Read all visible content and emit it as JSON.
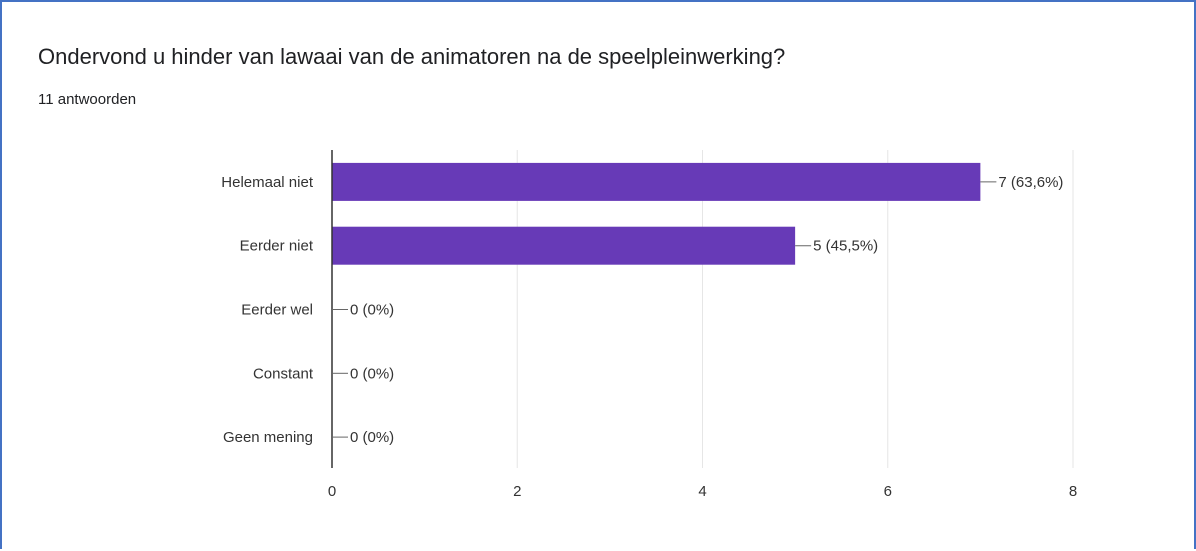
{
  "chart_data": {
    "type": "bar",
    "orientation": "horizontal",
    "title": "Ondervond u hinder van lawaai van de animatoren na de speelpleinwerking?",
    "subtitle": "11 antwoorden",
    "categories": [
      "Helemaal niet",
      "Eerder niet",
      "Eerder wel",
      "Constant",
      "Geen mening"
    ],
    "values": [
      7,
      5,
      0,
      0,
      0
    ],
    "data_labels": [
      "7 (63,6%)",
      "5 (45,5%)",
      "0 (0%)",
      "0 (0%)",
      "0 (0%)"
    ],
    "x_ticks": [
      "0",
      "2",
      "4",
      "6",
      "8"
    ],
    "xlim": [
      0,
      8
    ],
    "grid": true,
    "legend": "none",
    "bar_color": "#673ab7",
    "border_color": "#4472c4"
  }
}
